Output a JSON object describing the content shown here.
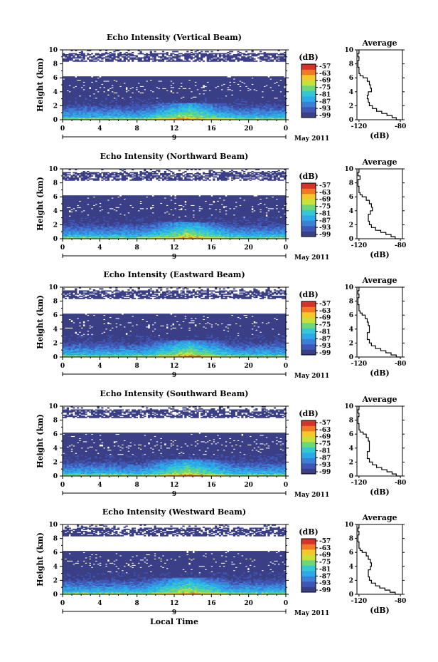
{
  "colors": {
    "colormap": [
      "#3b3f86",
      "#3f56b4",
      "#3d7fd6",
      "#2ba9e8",
      "#35c7d3",
      "#6bd67a",
      "#c7e13a",
      "#f3c92a",
      "#f07a23",
      "#d6322a"
    ],
    "background": "#ffffff",
    "ink": "#000000"
  },
  "chart_data": [
    {
      "type": "heatmap",
      "title": "Echo Intensity (Vertical Beam)",
      "ylabel": "Height (km)",
      "xlabel": "",
      "x_ticks": [
        "0",
        "4",
        "8",
        "12",
        "16",
        "20",
        "0"
      ],
      "y_ticks": [
        "0",
        "2",
        "4",
        "6",
        "8",
        "10"
      ],
      "xlim": [
        0,
        24
      ],
      "ylim": [
        0,
        10
      ],
      "date_marker": "9",
      "date_label": "May 2011",
      "colorbar": {
        "unit": "(dB)",
        "ticks": [
          "-57",
          "-63",
          "-69",
          "-75",
          "-81",
          "-87",
          "-93",
          "-99"
        ]
      },
      "profile": {
        "title": "Average",
        "xlabel": "(dB)",
        "x_ticks": [
          "-120",
          "-80"
        ],
        "y_ticks": [
          "0",
          "2",
          "4",
          "6",
          "8",
          "10"
        ],
        "xlim": [
          -122,
          -78
        ],
        "ylim": [
          0,
          10
        ],
        "heights": [
          0,
          0.3,
          0.6,
          0.9,
          1.2,
          1.6,
          2.0,
          2.5,
          3.0,
          3.5,
          4.0,
          4.5,
          5.0,
          5.5,
          6.0,
          6.3,
          6.6,
          7.5,
          8.5,
          9.0,
          9.5,
          10.0
        ],
        "values": [
          -80,
          -84,
          -88,
          -93,
          -98,
          -103,
          -107,
          -110,
          -111,
          -112,
          -111,
          -108,
          -109,
          -110,
          -112,
          -116,
          -119,
          -120,
          -121,
          -120,
          -121,
          -120
        ]
      }
    },
    {
      "type": "heatmap",
      "title": "Echo Intensity (Northward Beam)",
      "ylabel": "Height (km)",
      "xlabel": "",
      "x_ticks": [
        "0",
        "4",
        "8",
        "12",
        "16",
        "20",
        "0"
      ],
      "y_ticks": [
        "0",
        "2",
        "4",
        "6",
        "8",
        "10"
      ],
      "xlim": [
        0,
        24
      ],
      "ylim": [
        0,
        10
      ],
      "date_marker": "9",
      "date_label": "May 2011",
      "colorbar": {
        "unit": "(dB)",
        "ticks": [
          "-57",
          "-63",
          "-69",
          "-75",
          "-81",
          "-87",
          "-93",
          "-99"
        ]
      },
      "profile": {
        "title": "Average",
        "xlabel": "(dB)",
        "x_ticks": [
          "-120",
          "-80"
        ],
        "y_ticks": [
          "0",
          "2",
          "4",
          "6",
          "8",
          "10"
        ],
        "xlim": [
          -122,
          -78
        ],
        "ylim": [
          0,
          10
        ],
        "heights": [
          0,
          0.3,
          0.6,
          0.9,
          1.2,
          1.6,
          2.0,
          2.5,
          3.0,
          3.5,
          4.0,
          4.5,
          5.0,
          5.5,
          6.0,
          6.3,
          6.6,
          7.5,
          8.5,
          9.0,
          9.5,
          10.0
        ],
        "values": [
          -81,
          -85,
          -89,
          -94,
          -99,
          -104,
          -108,
          -110,
          -111,
          -111,
          -109,
          -107,
          -108,
          -110,
          -113,
          -117,
          -119,
          -120,
          -121,
          -119,
          -121,
          -120
        ]
      }
    },
    {
      "type": "heatmap",
      "title": "Echo Intensity (Eastward Beam)",
      "ylabel": "Height (km)",
      "xlabel": "",
      "x_ticks": [
        "0",
        "4",
        "8",
        "12",
        "16",
        "20",
        "0"
      ],
      "y_ticks": [
        "0",
        "2",
        "4",
        "6",
        "8",
        "10"
      ],
      "xlim": [
        0,
        24
      ],
      "ylim": [
        0,
        10
      ],
      "date_marker": "9",
      "date_label": "May 2011",
      "colorbar": {
        "unit": "(dB)",
        "ticks": [
          "-57",
          "-63",
          "-69",
          "-75",
          "-81",
          "-87",
          "-93",
          "-99"
        ]
      },
      "profile": {
        "title": "Average",
        "xlabel": "(dB)",
        "x_ticks": [
          "-120",
          "-80"
        ],
        "y_ticks": [
          "0",
          "2",
          "4",
          "6",
          "8",
          "10"
        ],
        "xlim": [
          -122,
          -78
        ],
        "ylim": [
          0,
          10
        ],
        "heights": [
          0,
          0.3,
          0.6,
          0.9,
          1.2,
          1.6,
          2.0,
          2.5,
          3.0,
          3.5,
          4.0,
          4.5,
          5.0,
          5.5,
          6.0,
          6.3,
          6.6,
          7.5,
          8.5,
          9.0,
          9.5,
          10.0
        ],
        "values": [
          -80,
          -84,
          -89,
          -94,
          -99,
          -104,
          -108,
          -110,
          -112,
          -112,
          -110,
          -110,
          -111,
          -112,
          -114,
          -117,
          -119,
          -120,
          -121,
          -120,
          -121,
          -120
        ]
      }
    },
    {
      "type": "heatmap",
      "title": "Echo Intensity (Southward Beam)",
      "ylabel": "Height (km)",
      "xlabel": "",
      "x_ticks": [
        "0",
        "4",
        "8",
        "12",
        "16",
        "20",
        "0"
      ],
      "y_ticks": [
        "0",
        "2",
        "4",
        "6",
        "8",
        "10"
      ],
      "xlim": [
        0,
        24
      ],
      "ylim": [
        0,
        10
      ],
      "date_marker": "9",
      "date_label": "May 2011",
      "colorbar": {
        "unit": "(dB)",
        "ticks": [
          "-57",
          "-63",
          "-69",
          "-75",
          "-81",
          "-87",
          "-93",
          "-99"
        ]
      },
      "profile": {
        "title": "Average",
        "xlabel": "(dB)",
        "x_ticks": [
          "-120",
          "-80"
        ],
        "y_ticks": [
          "0",
          "2",
          "4",
          "6",
          "8",
          "10"
        ],
        "xlim": [
          -122,
          -78
        ],
        "ylim": [
          0,
          10
        ],
        "heights": [
          0,
          0.3,
          0.6,
          0.9,
          1.2,
          1.6,
          2.0,
          2.5,
          3.0,
          3.5,
          4.0,
          4.5,
          5.0,
          5.5,
          6.0,
          6.3,
          6.6,
          7.5,
          8.5,
          9.0,
          9.5,
          10.0
        ],
        "values": [
          -80,
          -84,
          -88,
          -93,
          -98,
          -103,
          -107,
          -110,
          -112,
          -112,
          -110,
          -110,
          -110,
          -111,
          -113,
          -116,
          -119,
          -120,
          -121,
          -120,
          -121,
          -120
        ]
      }
    },
    {
      "type": "heatmap",
      "title": "Echo Intensity (Westward Beam)",
      "ylabel": "Height (km)",
      "xlabel": "Local Time",
      "x_ticks": [
        "0",
        "4",
        "8",
        "12",
        "16",
        "20",
        "0"
      ],
      "y_ticks": [
        "0",
        "2",
        "4",
        "6",
        "8",
        "10"
      ],
      "xlim": [
        0,
        24
      ],
      "ylim": [
        0,
        10
      ],
      "date_marker": "9",
      "date_label": "May 2011",
      "colorbar": {
        "unit": "(dB)",
        "ticks": [
          "-57",
          "-63",
          "-69",
          "-75",
          "-81",
          "-87",
          "-93",
          "-99"
        ]
      },
      "profile": {
        "title": "Average",
        "xlabel": "(dB)",
        "x_ticks": [
          "-120",
          "-80"
        ],
        "y_ticks": [
          "0",
          "2",
          "4",
          "6",
          "8",
          "10"
        ],
        "xlim": [
          -122,
          -78
        ],
        "ylim": [
          0,
          10
        ],
        "heights": [
          0,
          0.3,
          0.6,
          0.9,
          1.2,
          1.6,
          2.0,
          2.5,
          3.0,
          3.5,
          4.0,
          4.5,
          5.0,
          5.5,
          6.0,
          6.3,
          6.6,
          7.5,
          8.5,
          9.0,
          9.5,
          10.0
        ],
        "values": [
          -81,
          -85,
          -90,
          -95,
          -100,
          -104,
          -108,
          -110,
          -111,
          -111,
          -109,
          -108,
          -109,
          -111,
          -113,
          -117,
          -119,
          -120,
          -121,
          -120,
          -121,
          -120
        ]
      }
    }
  ]
}
